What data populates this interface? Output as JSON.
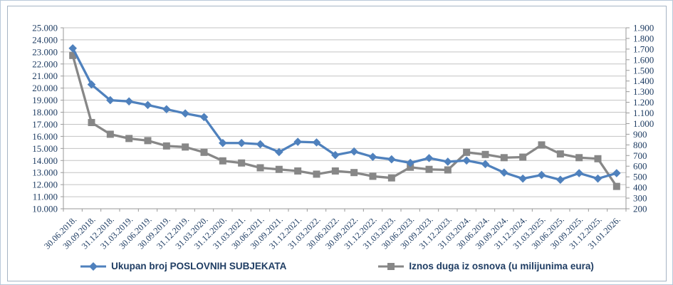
{
  "chart_data": {
    "type": "line",
    "title": "",
    "grid": true,
    "legend_position": "bottom",
    "categories": [
      "30.06.2018.",
      "30.09.2018.",
      "31.12.2018.",
      "31.03.2019.",
      "30.06.2019.",
      "30.09.2019.",
      "31.12.2019.",
      "31.03.2020.",
      "31.12.2020.",
      "31.03.2021.",
      "30.06.2021.",
      "30.09.2021.",
      "31.12.2021.",
      "31.03.2022.",
      "30.06.2022.",
      "30.09.2022.",
      "31.12.2022.",
      "31.03.2023.",
      "30.06.2023.",
      "30.09.2023.",
      "31.12.2023.",
      "31.03.2024.",
      "30.06.2024.",
      "30.09.2024.",
      "31.12.2024.",
      "31.03.2025.",
      "30.06.2025.",
      "30.09.2025.",
      "31.12.2025.",
      "31.01.2026."
    ],
    "series": [
      {
        "name": "Ukupan broj POSLOVNIH SUBJEKATA",
        "axis": "left",
        "color": "#4f81bd",
        "marker": "diamond",
        "values": [
          23300,
          20300,
          19000,
          18900,
          18600,
          18250,
          17900,
          17600,
          15450,
          15450,
          15350,
          14700,
          15550,
          15500,
          14450,
          14750,
          14300,
          14100,
          13800,
          14200,
          13900,
          14000,
          13700,
          13000,
          12500,
          12800,
          12400,
          12950,
          12500,
          12950
        ]
      },
      {
        "name": "Iznos duga iz osnova (u milijunima eura)",
        "axis": "right",
        "color": "#878787",
        "marker": "square",
        "values": [
          1640,
          1010,
          900,
          860,
          840,
          790,
          780,
          730,
          650,
          630,
          585,
          570,
          555,
          525,
          555,
          540,
          505,
          490,
          590,
          570,
          565,
          730,
          710,
          680,
          685,
          800,
          715,
          680,
          670,
          410
        ]
      }
    ],
    "left_axis": {
      "min": 10000,
      "max": 25000,
      "step": 1000
    },
    "right_axis": {
      "min": 200,
      "max": 1900,
      "step": 100
    }
  },
  "style": {
    "text_color": "#1f3d63",
    "gridline_color": "#c3c3c3",
    "axis_color": "#9a9a9a"
  }
}
